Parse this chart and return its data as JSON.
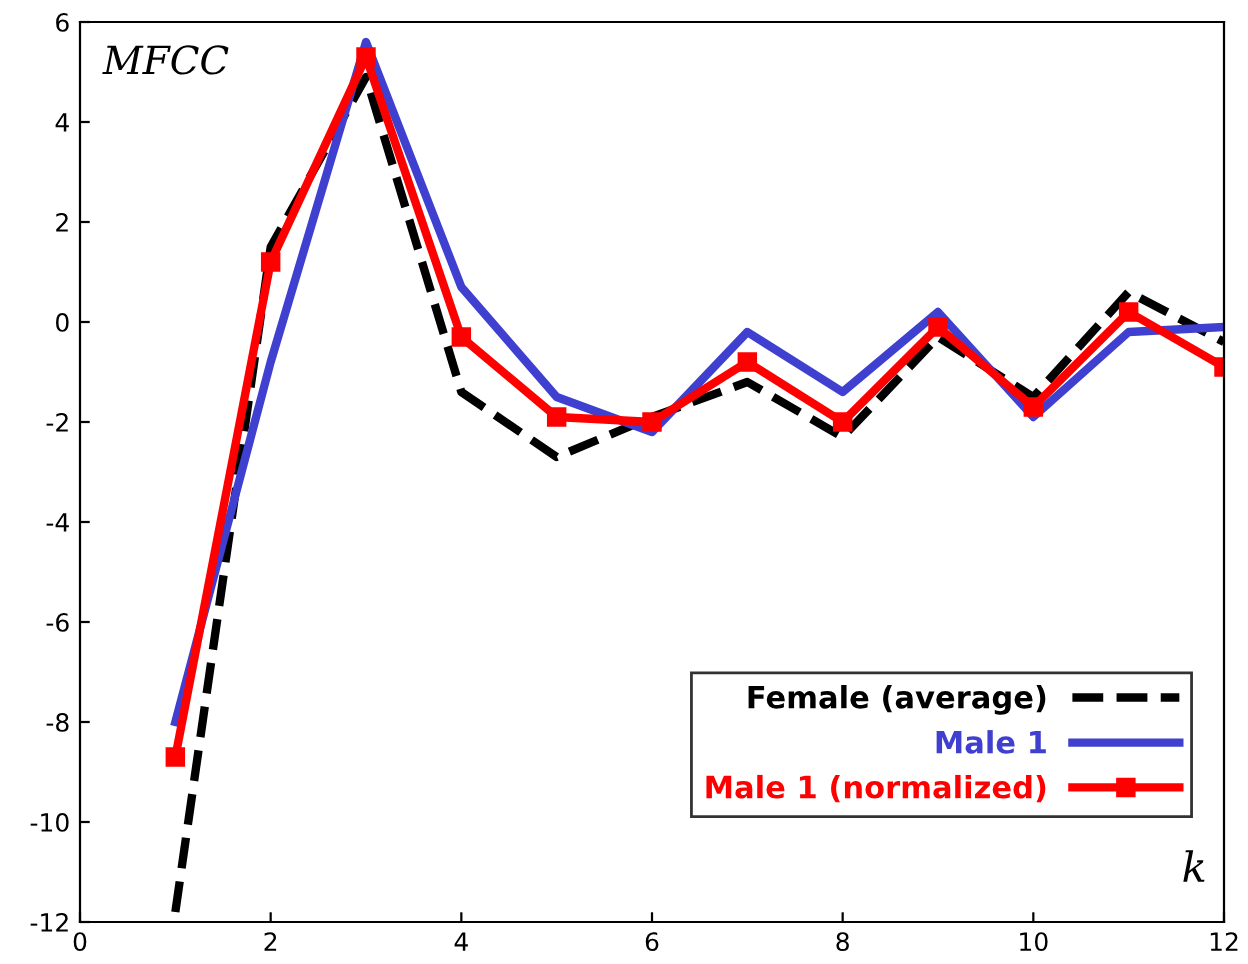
{
  "chart_data": {
    "type": "line",
    "xlabel": "k",
    "ylabel": "MFCC",
    "x": [
      1,
      2,
      3,
      4,
      5,
      6,
      7,
      8,
      9,
      10,
      11,
      12
    ],
    "series": [
      {
        "name": "Female (average)",
        "color": "#000000",
        "line_style": "dashed",
        "marker": "none",
        "values": [
          -11.8,
          1.5,
          4.9,
          -1.4,
          -2.7,
          -1.9,
          -1.2,
          -2.3,
          -0.3,
          -1.5,
          0.6,
          -0.4
        ]
      },
      {
        "name": "Male 1",
        "color": "#4040d0",
        "line_style": "solid",
        "marker": "none",
        "values": [
          -8.0,
          -0.8,
          5.6,
          0.7,
          -1.5,
          -2.2,
          -0.2,
          -1.4,
          0.2,
          -1.9,
          -0.2,
          -0.1
        ]
      },
      {
        "name": "Male 1 (normalized)",
        "color": "#ff0000",
        "line_style": "solid",
        "marker": "square",
        "values": [
          -8.7,
          1.2,
          5.3,
          -0.3,
          -1.9,
          -2.0,
          -0.8,
          -2.0,
          -0.1,
          -1.7,
          0.2,
          -0.9
        ]
      }
    ],
    "xlim": [
      0,
      12
    ],
    "ylim": [
      -12,
      6
    ],
    "xticks": [
      0,
      2,
      4,
      6,
      8,
      10,
      12
    ],
    "yticks": [
      -12,
      -10,
      -8,
      -6,
      -4,
      -2,
      0,
      2,
      4,
      6
    ],
    "grid": false,
    "legend": "bottom right"
  }
}
